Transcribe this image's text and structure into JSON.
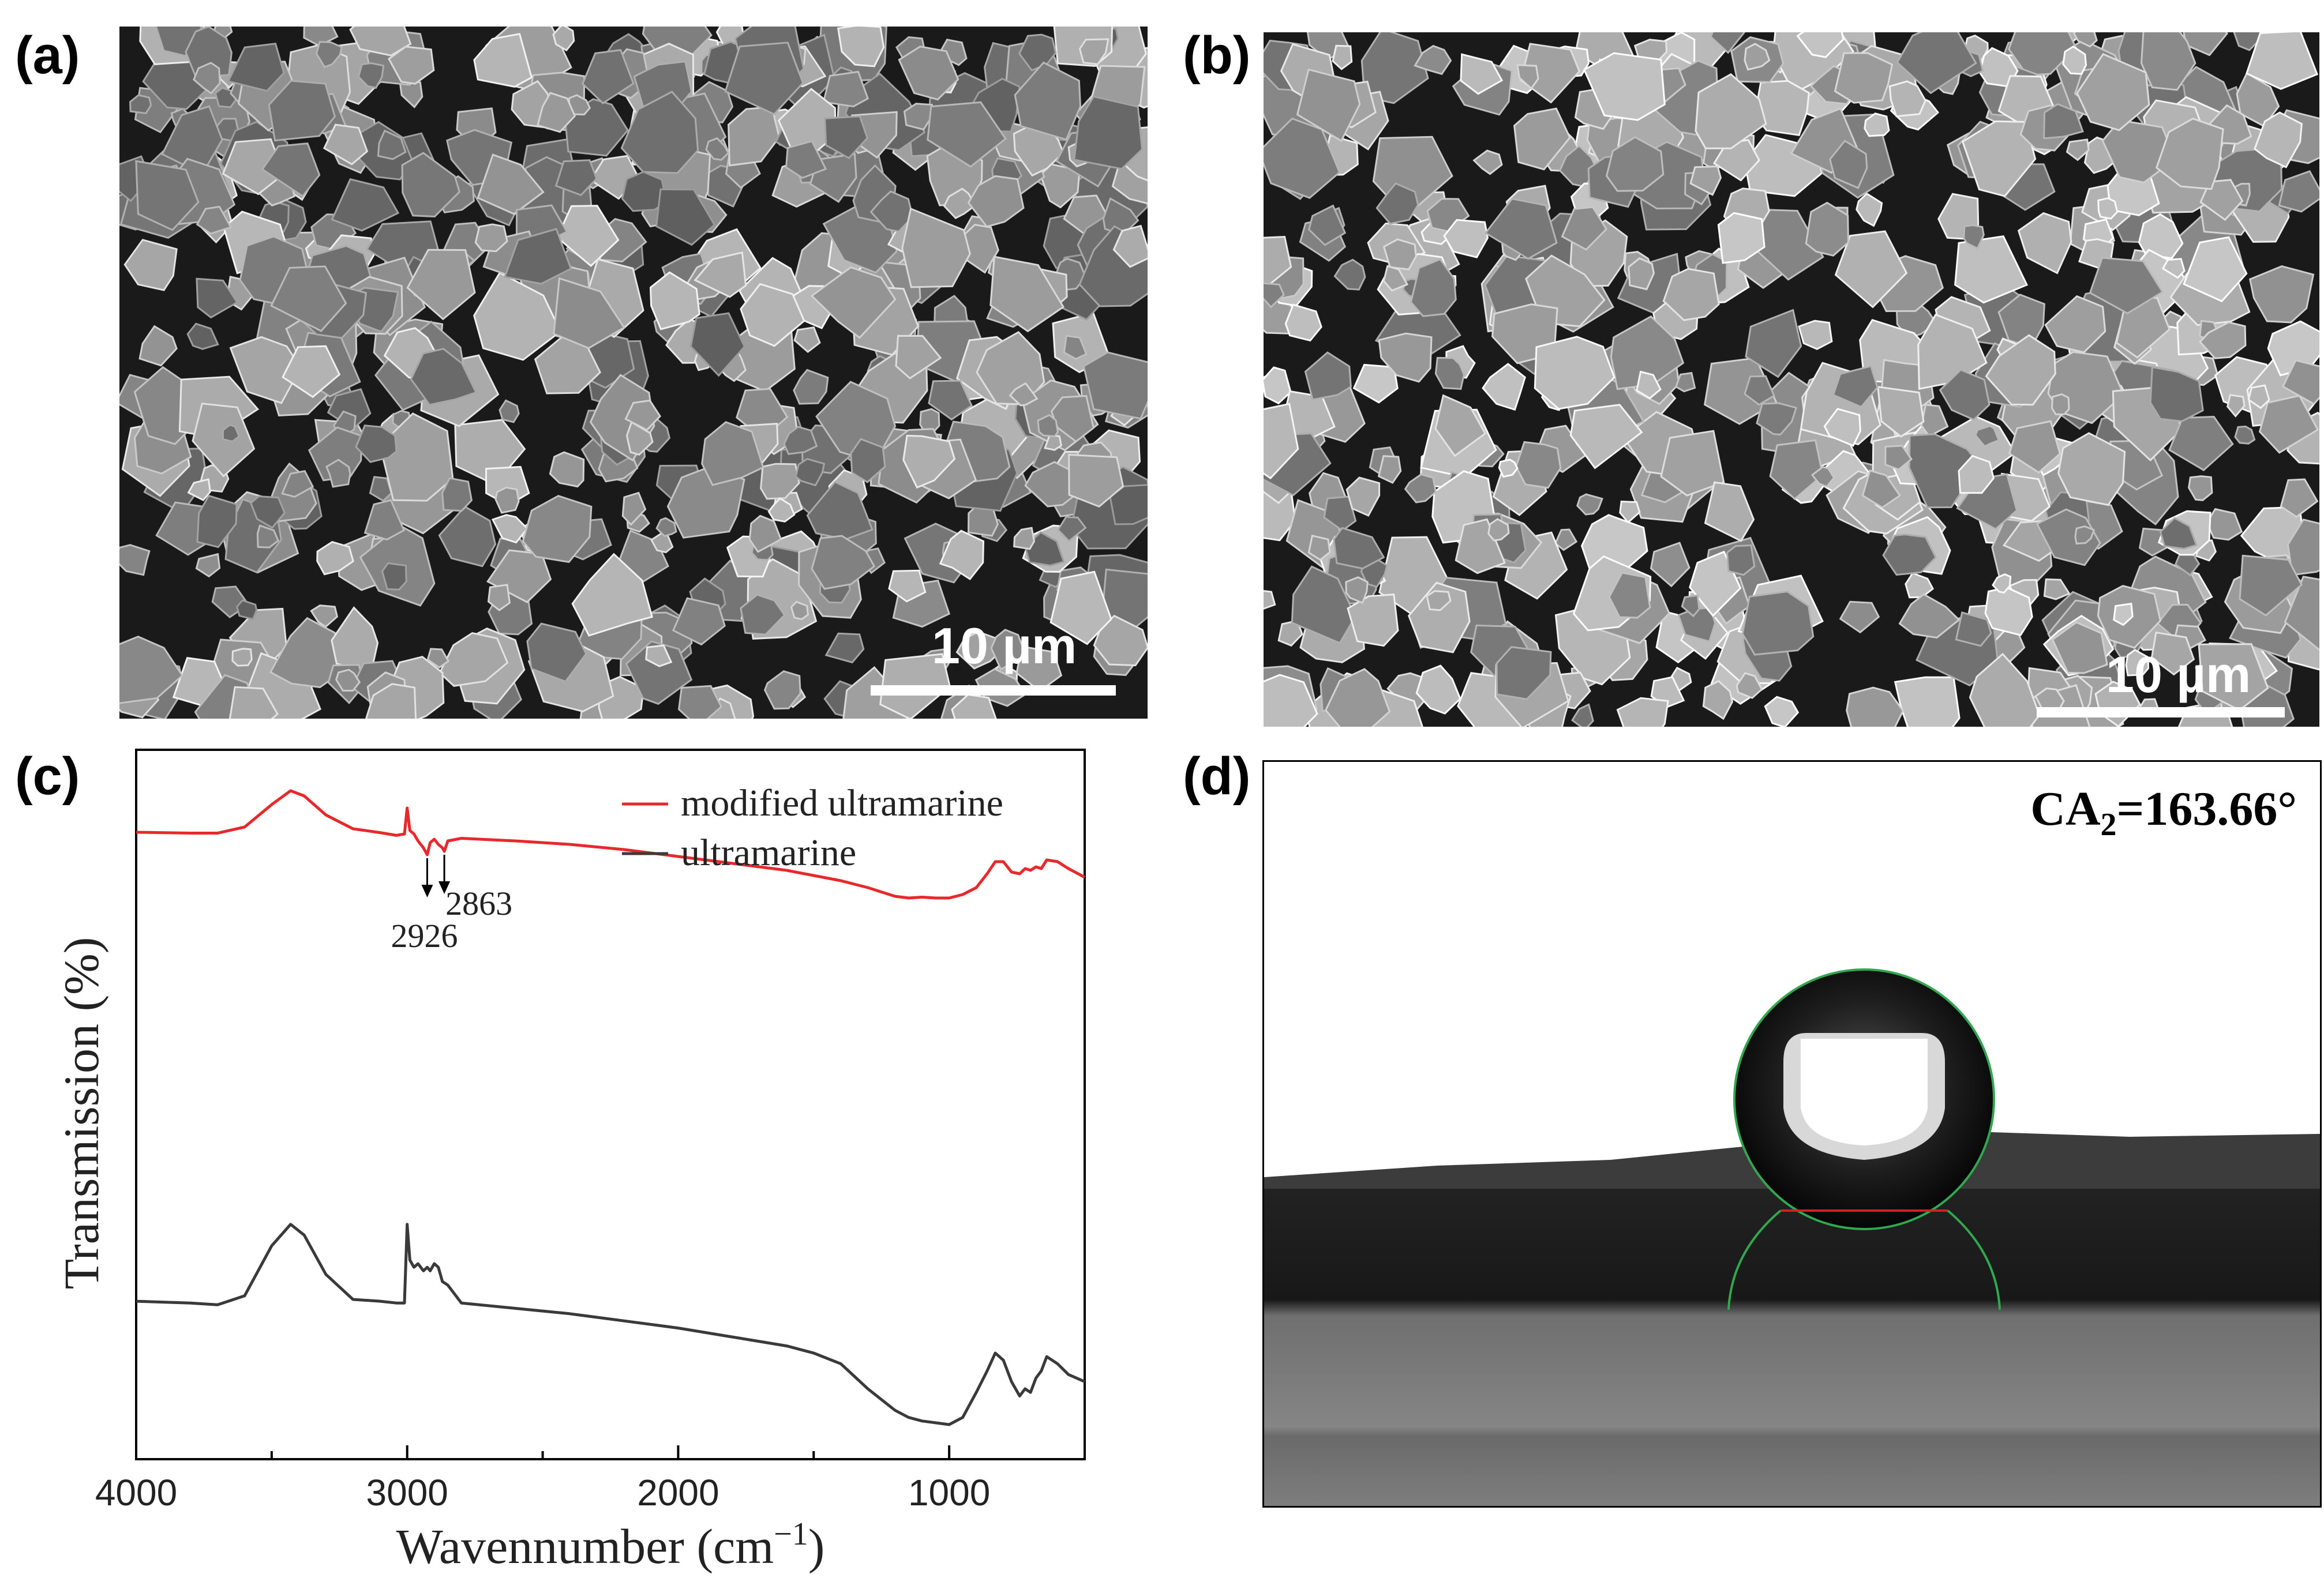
{
  "panels": {
    "a": {
      "label": "(a)",
      "scale_bar": "10 µm"
    },
    "b": {
      "label": "(b)",
      "scale_bar": "10 µm"
    },
    "c": {
      "label": "(c)"
    },
    "d": {
      "label": "(d)",
      "contact_angle_prefix": "CA",
      "contact_angle_sub": "2",
      "contact_angle_value": "=163.66°"
    }
  },
  "colors": {
    "modified": "#e8282b",
    "original": "#3a3a3a"
  },
  "chart_data": {
    "type": "line",
    "xlabel": "Wavennumber (cm",
    "xlabel_sup": "−1",
    "xlabel_end": ")",
    "ylabel": "Transmission (%)",
    "xlim": [
      4000,
      500
    ],
    "x_reversed": true,
    "xticks": [
      4000,
      3000,
      2000,
      1000
    ],
    "yticks_shown": false,
    "legend_position": "top-right",
    "series": [
      {
        "name": "modified ultramarine",
        "color": "#e8282b",
        "x": [
          4000,
          3800,
          3700,
          3600,
          3500,
          3430,
          3380,
          3300,
          3200,
          3100,
          3040,
          3010,
          3000,
          2990,
          2975,
          2960,
          2940,
          2926,
          2915,
          2900,
          2885,
          2870,
          2863,
          2850,
          2800,
          2600,
          2400,
          2200,
          2000,
          1800,
          1600,
          1500,
          1400,
          1300,
          1200,
          1150,
          1100,
          1050,
          1000,
          950,
          900,
          860,
          830,
          800,
          770,
          740,
          720,
          700,
          680,
          660,
          640,
          600,
          560,
          500
        ],
        "y": [
          0.69,
          0.685,
          0.685,
          0.72,
          0.85,
          0.93,
          0.9,
          0.79,
          0.71,
          0.688,
          0.672,
          0.68,
          0.83,
          0.7,
          0.68,
          0.64,
          0.6,
          0.56,
          0.63,
          0.65,
          0.62,
          0.6,
          0.58,
          0.64,
          0.655,
          0.64,
          0.62,
          0.59,
          0.55,
          0.51,
          0.47,
          0.44,
          0.41,
          0.37,
          0.32,
          0.31,
          0.315,
          0.31,
          0.31,
          0.33,
          0.37,
          0.45,
          0.52,
          0.52,
          0.46,
          0.45,
          0.48,
          0.47,
          0.49,
          0.48,
          0.53,
          0.52,
          0.48,
          0.43
        ]
      },
      {
        "name": "ultramarine",
        "color": "#3a3a3a",
        "x": [
          4000,
          3800,
          3700,
          3600,
          3500,
          3430,
          3380,
          3300,
          3200,
          3100,
          3040,
          3010,
          3000,
          2990,
          2975,
          2960,
          2940,
          2926,
          2915,
          2900,
          2885,
          2870,
          2850,
          2800,
          2600,
          2400,
          2200,
          2000,
          1800,
          1600,
          1500,
          1400,
          1300,
          1200,
          1150,
          1100,
          1050,
          1000,
          950,
          900,
          860,
          830,
          800,
          770,
          740,
          720,
          700,
          680,
          660,
          640,
          600,
          560,
          500
        ],
        "y": [
          0.345,
          0.34,
          0.335,
          0.36,
          0.5,
          0.56,
          0.53,
          0.42,
          0.35,
          0.345,
          0.34,
          0.34,
          0.56,
          0.46,
          0.44,
          0.45,
          0.43,
          0.44,
          0.43,
          0.45,
          0.44,
          0.4,
          0.39,
          0.34,
          0.325,
          0.31,
          0.29,
          0.27,
          0.245,
          0.22,
          0.2,
          0.17,
          0.1,
          0.04,
          0.02,
          0.01,
          0.005,
          0.0,
          0.02,
          0.09,
          0.15,
          0.2,
          0.18,
          0.12,
          0.08,
          0.1,
          0.09,
          0.13,
          0.15,
          0.19,
          0.17,
          0.14,
          0.12
        ]
      }
    ],
    "annotations": [
      {
        "text": "2926",
        "x": 2926
      },
      {
        "text": "2863",
        "x": 2863
      }
    ]
  }
}
